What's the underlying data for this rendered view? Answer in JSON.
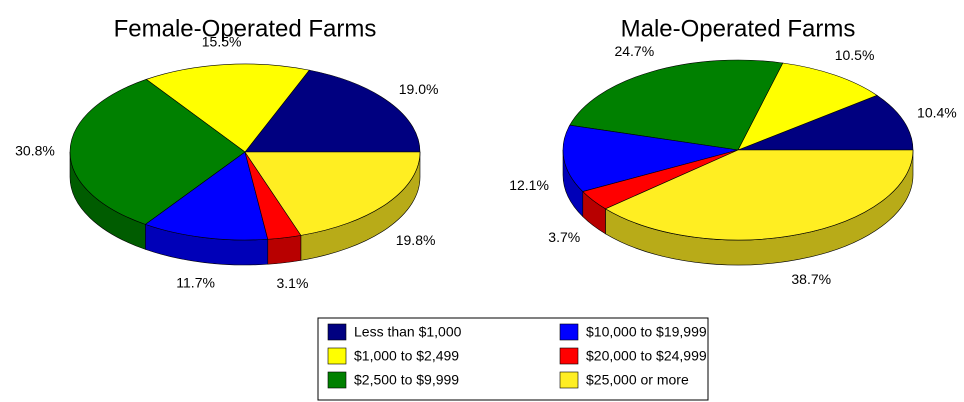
{
  "chart_data": [
    {
      "type": "pie",
      "title": "Female-Operated Farms",
      "categories": [
        "Less than $1,000",
        "$1,000 to $2,499",
        "$2,500 to $9,999",
        "$10,000 to $19,999",
        "$20,000 to $24,999",
        "$25,000 or more"
      ],
      "values": [
        19.0,
        15.5,
        30.8,
        11.7,
        3.1,
        19.8
      ],
      "value_labels": [
        "19.0%",
        "15.5%",
        "30.8%",
        "11.7%",
        "3.1%",
        "19.8%"
      ],
      "colors": [
        "#000080",
        "#ffff00",
        "#008000",
        "#0000ff",
        "#ff0000",
        "#ffee22"
      ]
    },
    {
      "type": "pie",
      "title": "Male-Operated Farms",
      "categories": [
        "Less than $1,000",
        "$1,000 to $2,499",
        "$2,500 to $9,999",
        "$10,000 to $19,999",
        "$20,000 to $24,999",
        "$25,000 or more"
      ],
      "values": [
        10.4,
        10.5,
        24.7,
        12.1,
        3.7,
        38.7
      ],
      "value_labels": [
        "10.4%",
        "10.5%",
        "24.7%",
        "12.1%",
        "3.7%",
        "38.7%"
      ],
      "colors": [
        "#000080",
        "#ffff00",
        "#008000",
        "#0000ff",
        "#ff0000",
        "#ffee22"
      ]
    }
  ]
}
